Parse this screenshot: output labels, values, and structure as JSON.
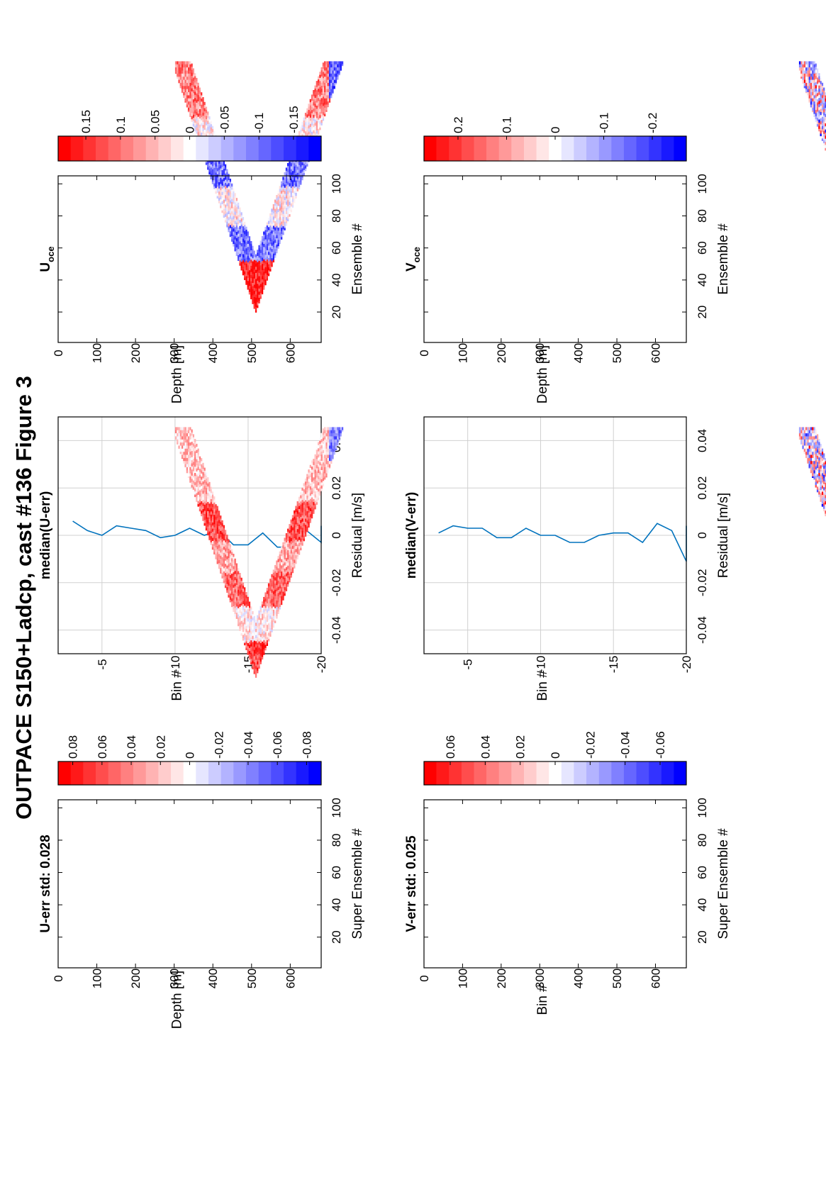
{
  "figure_title": "OUTPACE S150+Ladcp, cast #136  Figure 3",
  "colors": {
    "red": "#ff0000",
    "blue": "#0000ff",
    "white": "#ffffff",
    "line": "#0072bd",
    "grid": "#d0d0d0"
  },
  "chart_data": [
    {
      "id": "u_err",
      "type": "heatmap",
      "title": "U-err std: 0.028",
      "xlabel": "Super Ensemble #",
      "ylabel": "Depth [m]",
      "xlim": [
        1,
        105
      ],
      "ylim": [
        0,
        680
      ],
      "xticks": [
        20,
        40,
        60,
        80,
        100
      ],
      "yticks": [
        0,
        100,
        200,
        300,
        400,
        500,
        600
      ],
      "profile": "v-shaped cast, bottom ~660 m near ensemble 55",
      "colorbar": {
        "ticks": [
          "0.08",
          "0.06",
          "0.04",
          "0.02",
          "0",
          "-0.02",
          "-0.04",
          "-0.06",
          "-0.08"
        ],
        "range": [
          -0.09,
          0.09
        ]
      }
    },
    {
      "id": "v_err",
      "type": "heatmap",
      "title": "V-err std: 0.025",
      "xlabel": "Super Ensemble #",
      "ylabel": "Bin #",
      "xlim": [
        1,
        105
      ],
      "ylim": [
        0,
        680
      ],
      "xticks": [
        20,
        40,
        60,
        80,
        100
      ],
      "yticks": [
        0,
        100,
        200,
        300,
        400,
        500,
        600
      ],
      "colorbar": {
        "ticks": [
          "0.06",
          "0.04",
          "0.02",
          "0",
          "-0.02",
          "-0.04",
          "-0.06"
        ],
        "range": [
          -0.075,
          0.075
        ]
      }
    },
    {
      "id": "u_median",
      "type": "line",
      "title": "median(U-err)",
      "xlabel": "Residual [m/s]",
      "ylabel": "Bin #",
      "xlim": [
        -0.05,
        0.05
      ],
      "ylim": [
        -20,
        -2
      ],
      "xticks": [
        "-0.04",
        "-0.02",
        "0",
        "0.02",
        "0.04"
      ],
      "yticks": [
        "-5",
        "-10",
        "-15",
        "-20"
      ],
      "grid": true,
      "x": [
        0.006,
        0.002,
        0.0,
        0.004,
        0.003,
        0.002,
        -0.001,
        0.0,
        0.003,
        0.0,
        0.002,
        -0.004,
        -0.004,
        0.001,
        -0.005,
        -0.005,
        0.002,
        -0.003,
        0.004
      ],
      "y": [
        -3,
        -4,
        -5,
        -6,
        -7,
        -8,
        -9,
        -10,
        -11,
        -12,
        -13,
        -14,
        -15,
        -16,
        -17,
        -18,
        -19,
        -20,
        -21
      ]
    },
    {
      "id": "v_median",
      "type": "line",
      "title": "median(V-err)",
      "xlabel": "Residual [m/s]",
      "ylabel": "Bin #",
      "xlim": [
        -0.05,
        0.05
      ],
      "ylim": [
        -20,
        -2
      ],
      "xticks": [
        "-0.04",
        "-0.02",
        "0",
        "0.02",
        "0.04"
      ],
      "yticks": [
        "-5",
        "-10",
        "-15",
        "-20"
      ],
      "grid": true,
      "x": [
        0.001,
        0.004,
        0.003,
        0.003,
        -0.001,
        -0.001,
        0.003,
        0.0,
        0.0,
        -0.003,
        -0.003,
        0.0,
        0.001,
        0.001,
        -0.003,
        0.005,
        0.002,
        -0.011,
        0.004
      ],
      "y": [
        -3,
        -4,
        -5,
        -6,
        -7,
        -8,
        -9,
        -10,
        -11,
        -12,
        -13,
        -14,
        -15,
        -16,
        -17,
        -18,
        -19,
        -20,
        -21
      ]
    },
    {
      "id": "u_oce",
      "type": "heatmap",
      "title": "U",
      "title_sub": "oce",
      "xlabel": "Ensemble #",
      "ylabel": "Depth [m]",
      "xlim": [
        1,
        105
      ],
      "ylim": [
        0,
        680
      ],
      "xticks": [
        20,
        40,
        60,
        80,
        100
      ],
      "yticks": [
        0,
        100,
        200,
        300,
        400,
        500,
        600
      ],
      "colorbar": {
        "ticks": [
          "0.15",
          "0.1",
          "0.05",
          "0",
          "-0.05",
          "-0.1",
          "-0.15"
        ],
        "range": [
          -0.19,
          0.19
        ]
      }
    },
    {
      "id": "v_oce",
      "type": "heatmap",
      "title": "V",
      "title_sub": "oce",
      "xlabel": "Ensemble #",
      "ylabel": "Depth [m]",
      "xlim": [
        1,
        105
      ],
      "ylim": [
        0,
        680
      ],
      "xticks": [
        20,
        40,
        60,
        80,
        100
      ],
      "yticks": [
        0,
        100,
        200,
        300,
        400,
        500,
        600
      ],
      "colorbar": {
        "ticks": [
          "0.2",
          "0.1",
          "0",
          "-0.1",
          "-0.2"
        ],
        "range": [
          -0.27,
          0.27
        ]
      }
    }
  ]
}
